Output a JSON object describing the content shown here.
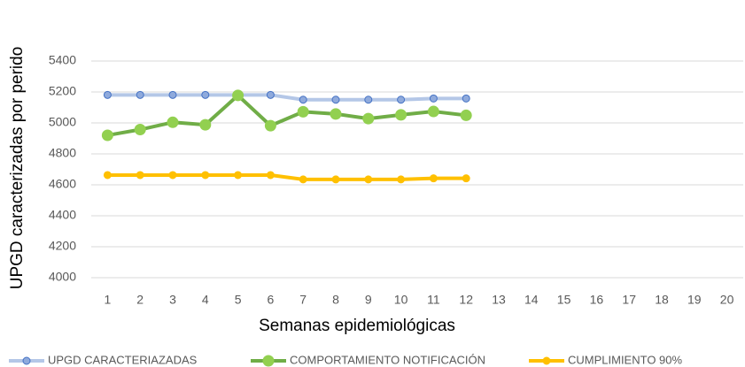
{
  "chart_data": {
    "type": "line",
    "x_label": "Semanas epidemiológicas",
    "y_label": "UPGD caracterizadas por perido",
    "categories": [
      "1",
      "2",
      "3",
      "4",
      "5",
      "6",
      "7",
      "8",
      "9",
      "10",
      "11",
      "12",
      "13",
      "14",
      "15",
      "16",
      "17",
      "18",
      "19",
      "20"
    ],
    "ylim": [
      4000,
      5400
    ],
    "yticks": [
      4000,
      4200,
      4400,
      4600,
      4800,
      5000,
      5200,
      5400
    ],
    "grid": true,
    "series": [
      {
        "name": "UPGD CARACTERIAZADAS",
        "color": "#b4c7e7",
        "marker_color": "#4472c4",
        "values": [
          5181,
          5181,
          5181,
          5181,
          5181,
          5181,
          5150,
          5150,
          5150,
          5150,
          5158,
          5158,
          null,
          null,
          null,
          null,
          null,
          null,
          null,
          null
        ]
      },
      {
        "name": "COMPORTAMIENTO NOTIFICACIÓN",
        "color": "#70ad47",
        "marker_color": "#92d050",
        "values": [
          4920,
          4957,
          5004,
          4988,
          5178,
          4982,
          5072,
          5058,
          5028,
          5052,
          5074,
          5049,
          null,
          null,
          null,
          null,
          null,
          null,
          null,
          null
        ]
      },
      {
        "name": "CUMPLIMIENTO 90%",
        "color": "#ffc000",
        "marker_color": "#ffc000",
        "values": [
          4663,
          4663,
          4663,
          4663,
          4663,
          4663,
          4635,
          4635,
          4635,
          4635,
          4642,
          4642,
          null,
          null,
          null,
          null,
          null,
          null,
          null,
          null
        ]
      }
    ]
  }
}
